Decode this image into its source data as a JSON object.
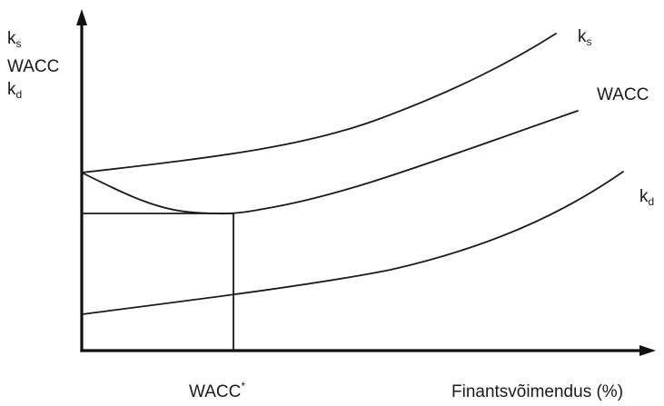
{
  "chart_data": {
    "type": "line",
    "y_axis_labels": [
      {
        "main": "k",
        "sub": "s"
      },
      {
        "main": "WACC",
        "sub": ""
      },
      {
        "main": "k",
        "sub": "d"
      }
    ],
    "xlabel": "Finantsvõimendus (%)",
    "x_marker": {
      "main": "WACC",
      "sup": "*"
    },
    "series": [
      {
        "name": "k",
        "name_sub": "s"
      },
      {
        "name": "WACC",
        "name_sub": ""
      },
      {
        "name": "k",
        "name_sub": "d"
      }
    ],
    "grid": false,
    "legend": "inline-right"
  }
}
